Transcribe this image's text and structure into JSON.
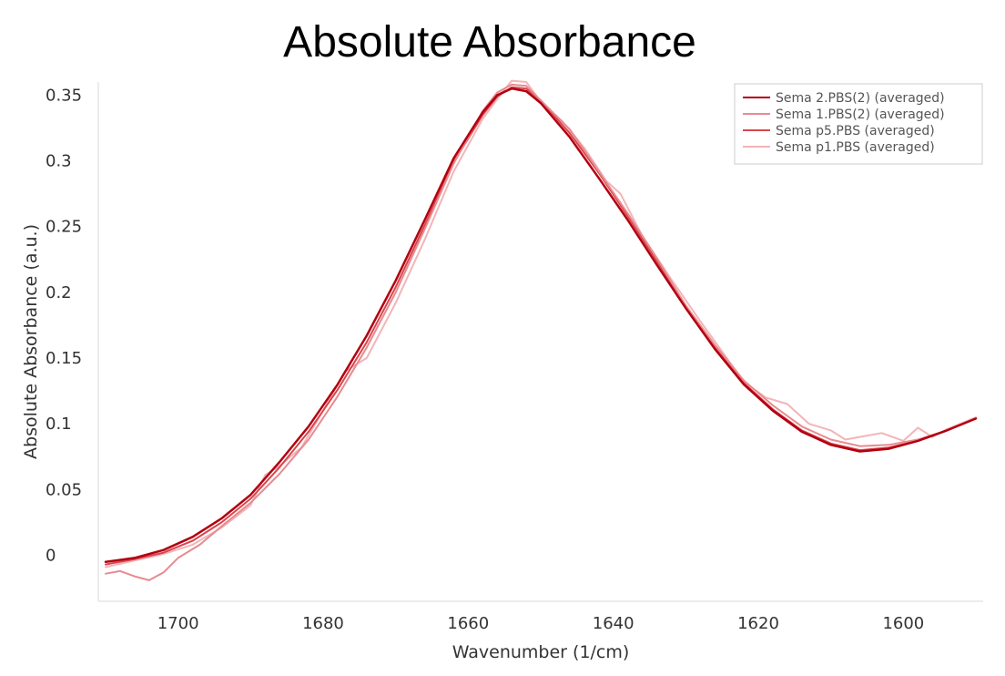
{
  "chart_data": {
    "type": "line",
    "title": "Absolute Absorbance",
    "xlabel": "Wavenumber (1/cm)",
    "ylabel": "Absolute Absorbance (a.u.)",
    "xlim": [
      1711,
      1589
    ],
    "ylim": [
      -0.035,
      0.36
    ],
    "x_ticks": [
      1700,
      1680,
      1660,
      1640,
      1620,
      1600
    ],
    "x_tick_labels": [
      "1700",
      "1680",
      "1660",
      "1640",
      "1620",
      "1600"
    ],
    "y_ticks": [
      0,
      0.05,
      0.1,
      0.15,
      0.2,
      0.25,
      0.3,
      0.35
    ],
    "y_tick_labels": [
      "0",
      "0.05",
      "0.1",
      "0.15",
      "0.2",
      "0.25",
      "0.3",
      "0.35"
    ],
    "grid": false,
    "legend_position": "top-right",
    "series": [
      {
        "name": "Sema 2.PBS(2) (averaged)",
        "color": "#b2000f",
        "x": [
          1710,
          1706,
          1702,
          1698,
          1694,
          1690,
          1686,
          1682,
          1678,
          1674,
          1670,
          1666,
          1662,
          1658,
          1656,
          1654,
          1652,
          1650,
          1646,
          1642,
          1638,
          1634,
          1630,
          1626,
          1622,
          1618,
          1614,
          1610,
          1606,
          1602,
          1598,
          1594,
          1590
        ],
        "y": [
          -0.005,
          -0.002,
          0.004,
          0.014,
          0.028,
          0.046,
          0.071,
          0.098,
          0.13,
          0.167,
          0.209,
          0.255,
          0.302,
          0.337,
          0.35,
          0.355,
          0.353,
          0.344,
          0.318,
          0.287,
          0.255,
          0.221,
          0.188,
          0.157,
          0.13,
          0.11,
          0.094,
          0.084,
          0.079,
          0.081,
          0.087,
          0.095,
          0.104
        ]
      },
      {
        "name": "Sema 1.PBS(2) (averaged)",
        "color": "#e88a8f",
        "x": [
          1710,
          1708,
          1706,
          1704,
          1702,
          1700,
          1697,
          1694,
          1690,
          1686,
          1682,
          1678,
          1674,
          1670,
          1666,
          1662,
          1658,
          1656,
          1654,
          1652,
          1650,
          1646,
          1642,
          1638,
          1634,
          1630,
          1626,
          1622,
          1618,
          1614,
          1610,
          1606,
          1602,
          1598,
          1594,
          1590
        ],
        "y": [
          -0.014,
          -0.012,
          -0.016,
          -0.019,
          -0.013,
          -0.002,
          0.008,
          0.022,
          0.04,
          0.062,
          0.088,
          0.121,
          0.158,
          0.2,
          0.248,
          0.298,
          0.338,
          0.352,
          0.358,
          0.357,
          0.346,
          0.324,
          0.292,
          0.26,
          0.226,
          0.19,
          0.16,
          0.133,
          0.114,
          0.098,
          0.088,
          0.083,
          0.084,
          0.088,
          0.095,
          0.104
        ]
      },
      {
        "name": "Sema p5.PBS (averaged)",
        "color": "#d9454d",
        "x": [
          1710,
          1706,
          1702,
          1698,
          1694,
          1690,
          1686,
          1682,
          1678,
          1674,
          1670,
          1666,
          1662,
          1658,
          1656,
          1654,
          1652,
          1650,
          1646,
          1642,
          1638,
          1634,
          1630,
          1626,
          1622,
          1618,
          1614,
          1610,
          1606,
          1602,
          1598,
          1594,
          1590
        ],
        "y": [
          -0.007,
          -0.003,
          0.002,
          0.011,
          0.025,
          0.043,
          0.067,
          0.094,
          0.126,
          0.162,
          0.204,
          0.251,
          0.299,
          0.335,
          0.349,
          0.356,
          0.355,
          0.346,
          0.321,
          0.291,
          0.258,
          0.224,
          0.19,
          0.158,
          0.131,
          0.111,
          0.095,
          0.085,
          0.08,
          0.082,
          0.087,
          0.095,
          0.104
        ]
      },
      {
        "name": "Sema p1.PBS (averaged)",
        "color": "#f2b5b8",
        "x": [
          1710,
          1706,
          1702,
          1698,
          1694,
          1690,
          1688,
          1686,
          1683,
          1680,
          1677,
          1674,
          1670,
          1666,
          1662,
          1658,
          1656,
          1654,
          1652,
          1650,
          1647,
          1644,
          1641,
          1639,
          1636,
          1632,
          1628,
          1625,
          1622,
          1619,
          1616,
          1613,
          1610,
          1608,
          1606,
          1603,
          1600,
          1598,
          1596,
          1594,
          1590
        ],
        "y": [
          -0.009,
          -0.004,
          0.001,
          0.008,
          0.021,
          0.038,
          0.061,
          0.068,
          0.082,
          0.11,
          0.14,
          0.15,
          0.192,
          0.24,
          0.292,
          0.332,
          0.347,
          0.361,
          0.36,
          0.345,
          0.33,
          0.31,
          0.285,
          0.275,
          0.243,
          0.21,
          0.178,
          0.155,
          0.132,
          0.12,
          0.115,
          0.1,
          0.095,
          0.088,
          0.09,
          0.093,
          0.087,
          0.097,
          0.09,
          0.096,
          0.105
        ]
      }
    ]
  }
}
